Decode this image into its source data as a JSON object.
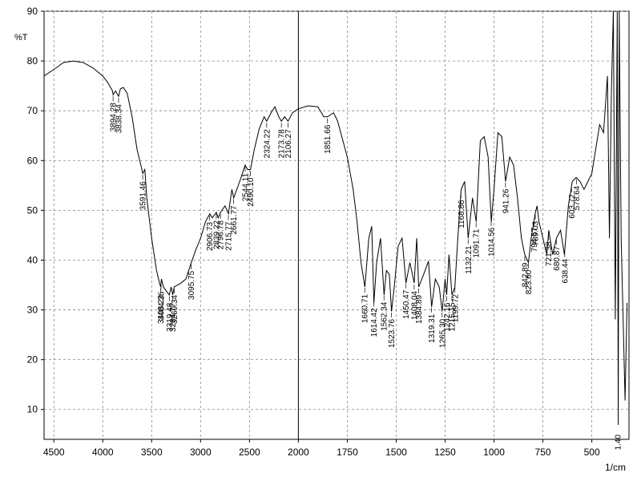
{
  "chart_data": {
    "type": "line",
    "y_label": "%T",
    "x_label": "1/cm",
    "xlim": [
      4600,
      310
    ],
    "ylim": [
      4,
      90
    ],
    "xscale": {
      "break": 2000,
      "factor": 2
    },
    "xticks": [
      4500,
      4000,
      3500,
      3000,
      2500,
      2000,
      1750,
      1500,
      1250,
      1000,
      750,
      500
    ],
    "yticks": [
      10,
      20,
      30,
      40,
      50,
      60,
      70,
      80,
      90
    ],
    "grid": true,
    "series": [
      {
        "color": "#000000",
        "x": [
          4600,
          4500,
          4400,
          4300,
          4200,
          4100,
          4000,
          3950,
          3900,
          3894,
          3870,
          3838,
          3820,
          3790,
          3750,
          3700,
          3650,
          3600,
          3591,
          3570,
          3550,
          3500,
          3450,
          3420,
          3408,
          3400,
          3380,
          3350,
          3320,
          3300,
          3285,
          3270,
          3200,
          3150,
          3095,
          3050,
          3000,
          2950,
          2906,
          2880,
          2839,
          2820,
          2796,
          2750,
          2715,
          2680,
          2661,
          2600,
          2544,
          2520,
          2490,
          2450,
          2400,
          2350,
          2324,
          2280,
          2240,
          2200,
          2174,
          2140,
          2106,
          2060,
          2000,
          1950,
          1900,
          1870,
          1851,
          1820,
          1800,
          1750,
          1720,
          1700,
          1680,
          1660,
          1640,
          1625,
          1614,
          1600,
          1580,
          1562,
          1550,
          1535,
          1524,
          1510,
          1490,
          1470,
          1450,
          1430,
          1408,
          1395,
          1385,
          1360,
          1335,
          1319,
          1300,
          1280,
          1265,
          1250,
          1242,
          1230,
          1215,
          1200,
          1185,
          1168,
          1150,
          1132,
          1110,
          1091,
          1070,
          1050,
          1030,
          1014,
          1000,
          980,
          960,
          941,
          920,
          900,
          880,
          860,
          843,
          824,
          810,
          790,
          780,
          770,
          750,
          730,
          720,
          700,
          681,
          660,
          640,
          620,
          600,
          580,
          560,
          540,
          520,
          500,
          480,
          460,
          440,
          420,
          410,
          400,
          390,
          380,
          370,
          365,
          360,
          350,
          340,
          330,
          320
        ],
        "values": [
          77,
          78.3,
          79.7,
          80,
          79.7,
          78.6,
          77,
          75.7,
          74,
          73.2,
          74,
          72.9,
          74.4,
          74.7,
          73.5,
          68.8,
          62.3,
          58.2,
          57.4,
          58.2,
          52.5,
          44.4,
          37.9,
          35.4,
          34.6,
          36.2,
          34.6,
          33.8,
          33,
          34.6,
          33,
          34.6,
          35.4,
          36.2,
          39.5,
          42,
          44.4,
          47.7,
          49.3,
          48.5,
          49.6,
          48.5,
          49.6,
          50.9,
          49.3,
          54.2,
          52.5,
          55.8,
          59.1,
          58.2,
          58.2,
          62.3,
          66.4,
          68.8,
          67.9,
          69.6,
          70.8,
          68.8,
          67.9,
          68.8,
          67.9,
          69.6,
          70.4,
          71,
          70.8,
          68.8,
          68.8,
          69.6,
          68,
          60.7,
          54.2,
          47.7,
          39.5,
          34.6,
          44.4,
          46.8,
          31.4,
          39.5,
          44.4,
          33,
          37.9,
          37.1,
          29.7,
          34.6,
          42.8,
          44.4,
          35.4,
          39.5,
          35.4,
          44.4,
          34.6,
          37.1,
          39.8,
          30.6,
          36.2,
          34.6,
          29.7,
          36.2,
          33,
          41.1,
          33,
          34.6,
          44.4,
          54.2,
          55.8,
          44.4,
          52.5,
          47.7,
          64,
          64.8,
          60.7,
          47.7,
          54.2,
          65.6,
          64.8,
          55.8,
          60.7,
          59.1,
          52.5,
          44.4,
          41.1,
          39.5,
          44.4,
          49.3,
          50.9,
          47.7,
          44.4,
          41.1,
          46,
          41.1,
          44.4,
          46,
          41.1,
          50.9,
          55.8,
          56.6,
          55.8,
          54.2,
          55.8,
          57.4,
          62.3,
          67.2,
          65.6,
          77,
          44.4,
          73.7,
          90,
          28.1,
          90,
          6.9,
          90,
          44.4,
          28.1,
          11.8,
          31.4
        ]
      }
    ],
    "peaks": {
      "values": [
        3894.28,
        3838.34,
        3591.46,
        3408.22,
        3404.36,
        3319.48,
        3284.77,
        3269.34,
        3095.75,
        2906.73,
        2839.22,
        2796.78,
        2715.77,
        2661.77,
        2544.11,
        2490.1,
        2324.22,
        2173.78,
        2106.27,
        1851.66,
        1660.71,
        1614.42,
        1562.34,
        1523.76,
        1450.47,
        1408.04,
        1384.89,
        1319.31,
        1265.3,
        1242.16,
        1215.15,
        1199.72,
        1168.86,
        1132.21,
        1091.71,
        1014.56,
        941.26,
        842.89,
        823.6,
        794.67,
        789.03,
        721.38,
        680.87,
        638.44,
        603.72,
        578.64
      ],
      "value_labels": [
        "3894.28",
        "3838.34",
        "3591.46",
        "3408.22",
        "3404.36",
        "3319.48",
        "3284.77",
        "3269.34",
        "3095.75",
        "2906.73",
        "2839.22",
        "2796.78",
        "2715.77",
        "2661.77",
        "2544.11",
        "2490.10",
        "2324.22",
        "2173.78",
        "2106.27",
        "1851.66",
        "1660.71",
        "1614.42",
        "1562.34",
        "1523.76",
        "1450.47",
        "1408.04",
        "1384.89",
        "1319.31",
        "1265.30",
        "1242.16",
        "1215.15",
        "1199.72",
        "1168.86",
        "1132.21",
        "1091.71",
        "1014.56",
        "941.26",
        "842.89",
        "823.60",
        "794.67",
        "789.03",
        "721.38",
        "680.87",
        "638.44",
        "603.72",
        "578.64"
      ]
    },
    "annotations": [
      "1.40"
    ]
  }
}
